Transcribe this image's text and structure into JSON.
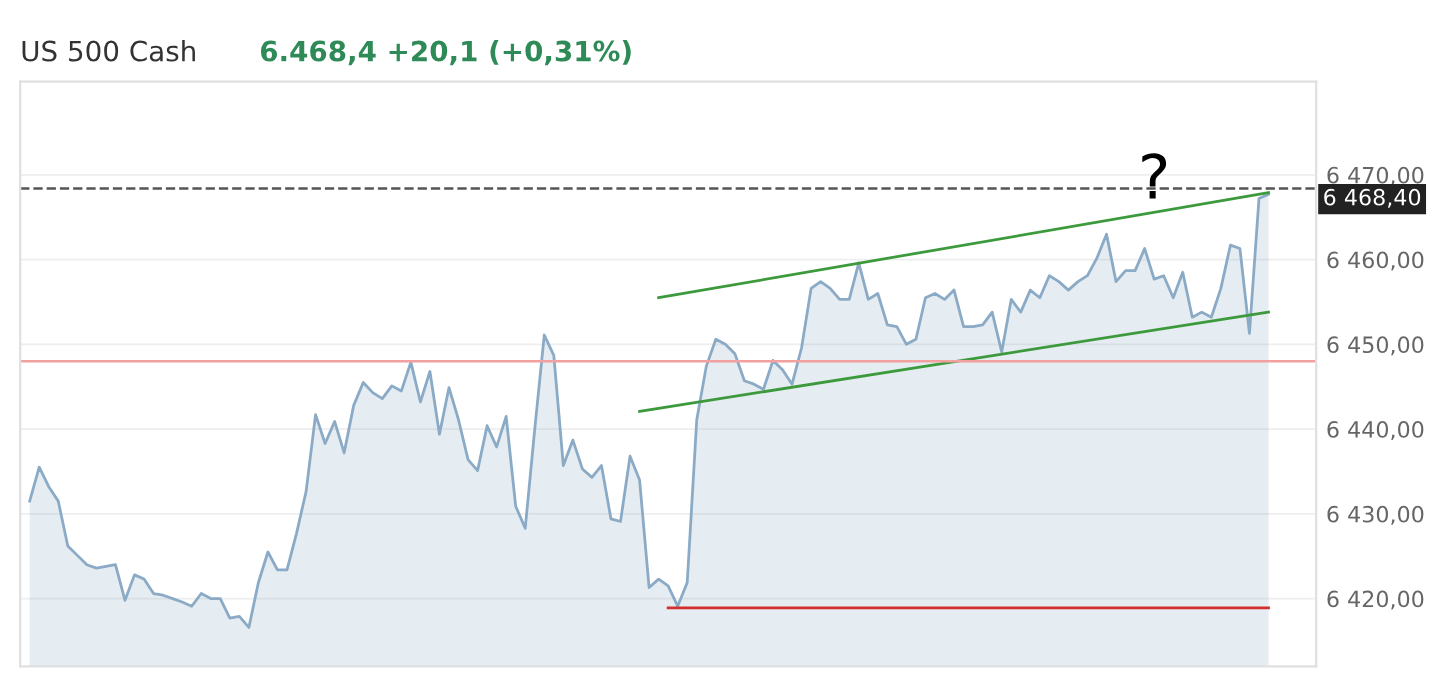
{
  "chart_data": {
    "type": "area",
    "title": "US 500 Cash",
    "subtitle": "6.468,4 +20,1 (+0,31%)",
    "categories": [
      null,
      null,
      null,
      null,
      null,
      null,
      null,
      null,
      null,
      null,
      null,
      null,
      null,
      null,
      null,
      null,
      null,
      null,
      null,
      null,
      null,
      null,
      null,
      null,
      null,
      null,
      null,
      null,
      null,
      null,
      null,
      null,
      null,
      null,
      null,
      null,
      null,
      null,
      null,
      null,
      null,
      null,
      null,
      null,
      null,
      null,
      null,
      null,
      null,
      null,
      null,
      null,
      null,
      null,
      null,
      null,
      null,
      null,
      null,
      null,
      null,
      null,
      null,
      null,
      null,
      null,
      null,
      null,
      null,
      null,
      null,
      null,
      null,
      null,
      null,
      null,
      null,
      null,
      null,
      null,
      null,
      null,
      null,
      null,
      null,
      null,
      null,
      null,
      null,
      null,
      null,
      null,
      null,
      null,
      null,
      null,
      null,
      null,
      null,
      null,
      null,
      null,
      null,
      null,
      null,
      null,
      null,
      null,
      null,
      null,
      null,
      null,
      null,
      null,
      null,
      null,
      null,
      null,
      null,
      null,
      null,
      null,
      null,
      null,
      null,
      null,
      null,
      null,
      null,
      null,
      null
    ],
    "series": [
      {
        "color": "#8aaac6",
        "values": [
          6431.5,
          6435.5,
          6433.2,
          6431.5,
          6426.2,
          6425.1,
          6424.0,
          6423.6,
          6423.8,
          6424.0,
          6419.8,
          6422.8,
          6422.3,
          6420.6,
          6420.4,
          6420.0,
          6419.6,
          6419.1,
          6420.6,
          6420.0,
          6420.0,
          6417.7,
          6417.9,
          6416.6,
          6421.9,
          6425.5,
          6423.4,
          6423.4,
          6427.7,
          6432.6,
          6441.7,
          6438.3,
          6440.9,
          6437.2,
          6442.8,
          6445.5,
          6444.3,
          6443.6,
          6445.1,
          6444.5,
          6447.9,
          6443.2,
          6446.8,
          6439.4,
          6444.9,
          6441.1,
          6436.4,
          6435.1,
          6440.4,
          6437.9,
          6441.5,
          6430.9,
          6428.3,
          6440.0,
          6451.1,
          6448.7,
          6435.7,
          6438.7,
          6435.3,
          6434.3,
          6435.7,
          6429.4,
          6429.1,
          6436.8,
          6434.0,
          6421.3,
          6422.3,
          6421.5,
          6419.1,
          6421.9,
          6441.1,
          6447.4,
          6450.6,
          6450.0,
          6448.9,
          6445.7,
          6445.3,
          6444.7,
          6448.1,
          6447.0,
          6445.3,
          6449.6,
          6456.6,
          6457.4,
          6456.6,
          6455.3,
          6455.3,
          6459.6,
          6455.3,
          6456.0,
          6452.3,
          6452.1,
          6450.0,
          6450.6,
          6455.5,
          6456.0,
          6455.3,
          6456.4,
          6452.1,
          6452.1,
          6452.3,
          6453.8,
          6449.1,
          6455.3,
          6453.8,
          6456.4,
          6455.5,
          6458.1,
          6457.4,
          6456.4,
          6457.4,
          6458.1,
          6460.2,
          6463.0,
          6457.4,
          6458.7,
          6458.7,
          6461.3,
          6457.7,
          6458.1,
          6455.5,
          6458.5,
          6453.2,
          6453.8,
          6453.2,
          6456.6,
          6461.7,
          6461.3,
          6451.3,
          6467.2,
          6467.7
        ]
      },
      {
        "type": "line",
        "color": "#3c9a3c",
        "values": [
          null,
          null,
          null,
          null,
          null,
          null,
          null,
          null,
          null,
          null,
          null,
          null,
          null,
          null,
          null,
          null,
          null,
          null,
          null,
          null,
          null,
          null,
          null,
          null,
          null,
          null,
          null,
          null,
          null,
          null,
          null,
          null,
          null,
          null,
          null,
          null,
          null,
          null,
          null,
          null,
          null,
          null,
          null,
          null,
          null,
          null,
          null,
          null,
          null,
          null,
          null,
          null,
          null,
          null,
          null,
          null,
          null,
          null,
          null,
          null,
          null,
          null,
          null,
          null,
          null,
          null,
          6455.5,
          null,
          null,
          null,
          null,
          null,
          null,
          null,
          null,
          null,
          null,
          null,
          null,
          null,
          null,
          null,
          null,
          null,
          null,
          null,
          null,
          null,
          null,
          null,
          null,
          null,
          null,
          null,
          null,
          null,
          null,
          null,
          null,
          null,
          null,
          null,
          null,
          null,
          null,
          null,
          null,
          null,
          null,
          null,
          null,
          null,
          null,
          null,
          null,
          null,
          null,
          null,
          null,
          null,
          null,
          null,
          null,
          null,
          null,
          null,
          null,
          null,
          null,
          null,
          6467.9
        ]
      },
      {
        "type": "line",
        "color": "#3c9a3c",
        "values": [
          null,
          null,
          null,
          null,
          null,
          null,
          null,
          null,
          null,
          null,
          null,
          null,
          null,
          null,
          null,
          null,
          null,
          null,
          null,
          null,
          null,
          null,
          null,
          null,
          null,
          null,
          null,
          null,
          null,
          null,
          null,
          null,
          null,
          null,
          null,
          null,
          null,
          null,
          null,
          null,
          null,
          null,
          null,
          null,
          null,
          null,
          null,
          null,
          null,
          null,
          null,
          null,
          null,
          null,
          null,
          null,
          null,
          null,
          null,
          null,
          null,
          null,
          null,
          null,
          6442.1,
          null,
          null,
          null,
          null,
          null,
          null,
          null,
          null,
          null,
          null,
          null,
          null,
          null,
          null,
          null,
          null,
          null,
          null,
          null,
          null,
          null,
          null,
          null,
          null,
          null,
          null,
          null,
          null,
          null,
          null,
          null,
          null,
          null,
          null,
          null,
          null,
          null,
          null,
          null,
          null,
          null,
          null,
          null,
          null,
          null,
          null,
          null,
          null,
          null,
          null,
          null,
          null,
          null,
          null,
          null,
          null,
          null,
          null,
          null,
          null,
          null,
          null,
          null,
          null,
          null,
          6453.8
        ]
      },
      {
        "type": "line",
        "color": "#d32f2f",
        "values": [
          null,
          null,
          null,
          null,
          null,
          null,
          null,
          null,
          null,
          null,
          null,
          null,
          null,
          null,
          null,
          null,
          null,
          null,
          null,
          null,
          null,
          null,
          null,
          null,
          null,
          null,
          null,
          null,
          null,
          null,
          null,
          null,
          null,
          null,
          null,
          null,
          null,
          null,
          null,
          null,
          null,
          null,
          null,
          null,
          null,
          null,
          null,
          null,
          null,
          null,
          null,
          null,
          null,
          null,
          null,
          null,
          null,
          null,
          null,
          null,
          null,
          null,
          null,
          null,
          null,
          null,
          null,
          6418.9,
          null,
          null,
          null,
          null,
          null,
          null,
          null,
          null,
          null,
          null,
          null,
          null,
          null,
          null,
          null,
          null,
          null,
          null,
          null,
          null,
          null,
          null,
          null,
          null,
          null,
          null,
          null,
          null,
          null,
          null,
          null,
          null,
          null,
          null,
          null,
          null,
          null,
          null,
          null,
          null,
          null,
          null,
          null,
          null,
          null,
          null,
          null,
          null,
          null,
          null,
          null,
          null,
          null,
          null,
          null,
          null,
          null,
          null,
          null,
          null,
          null,
          null,
          6418.9
        ]
      }
    ],
    "ylim": [
      6412,
      6481
    ],
    "yticks": [
      {
        "value": 6420,
        "label": "6 420,00"
      },
      {
        "value": 6430,
        "label": "6 430,00"
      },
      {
        "value": 6440,
        "label": "6 440,00"
      },
      {
        "value": 6450,
        "label": "6 450,00"
      },
      {
        "value": 6460,
        "label": "6 460,00"
      },
      {
        "value": 6470,
        "label": "6 470,00"
      }
    ],
    "ref_lines": [
      {
        "axis": "y",
        "value": 6468.4,
        "label": "6 468,40",
        "color": "#555555",
        "line_style": "dashed"
      },
      {
        "axis": "y",
        "value": 6448,
        "color": "#f2a0a0",
        "line_style": "solid"
      }
    ],
    "annotations": [
      "?"
    ],
    "grid": "y"
  }
}
